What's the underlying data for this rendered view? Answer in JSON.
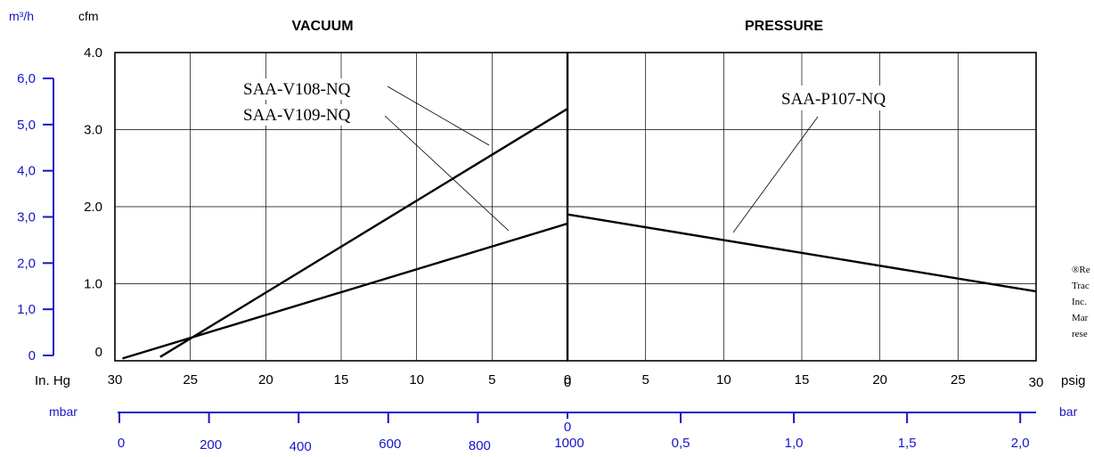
{
  "colors": {
    "blue_axis": "#1515c8",
    "ink": "#000000"
  },
  "chart_data": {
    "type": "line",
    "titles": {
      "vacuum": "VACUUM",
      "pressure": "PRESSURE"
    },
    "units": {
      "flow_metric": "m³/h",
      "flow_imperial": "cfm",
      "vacuum_imperial": "In. Hg",
      "vacuum_metric": "mbar",
      "pressure_imperial": "psig",
      "pressure_metric": "bar"
    },
    "y_cfm": {
      "ticks": [
        "4.0",
        "3.0",
        "2.0",
        "1.0",
        "0"
      ],
      "range": [
        0,
        4
      ]
    },
    "y_m3h": {
      "ticks": [
        "6,0",
        "5,0",
        "4,0",
        "3,0",
        "2,0",
        "1,0",
        "0"
      ]
    },
    "vacuum_x_inhg": {
      "ticks": [
        "30",
        "25",
        "20",
        "15",
        "10",
        "5",
        "0"
      ]
    },
    "pressure_x_psig": {
      "ticks": [
        "0",
        "5",
        "10",
        "15",
        "20",
        "25",
        "30"
      ]
    },
    "mbar_ticks": [
      "0",
      "200",
      "400",
      "600",
      "800",
      "1000"
    ],
    "bar_ticks": [
      "0",
      "0,5",
      "1,0",
      "1,5",
      "2,0"
    ],
    "series": [
      {
        "name": "SAA-V108-NQ",
        "axis": "vacuum",
        "x": [
          27.0,
          0
        ],
        "y": [
          0.05,
          3.27
        ]
      },
      {
        "name": "SAA-V109-NQ",
        "axis": "vacuum",
        "x": [
          29.5,
          0
        ],
        "y": [
          0.03,
          1.78
        ]
      },
      {
        "name": "SAA-P107-NQ",
        "axis": "pressure",
        "x": [
          0,
          30
        ],
        "y": [
          1.9,
          0.9
        ]
      }
    ],
    "note": "®Re Trac Inc. Mar rese"
  }
}
